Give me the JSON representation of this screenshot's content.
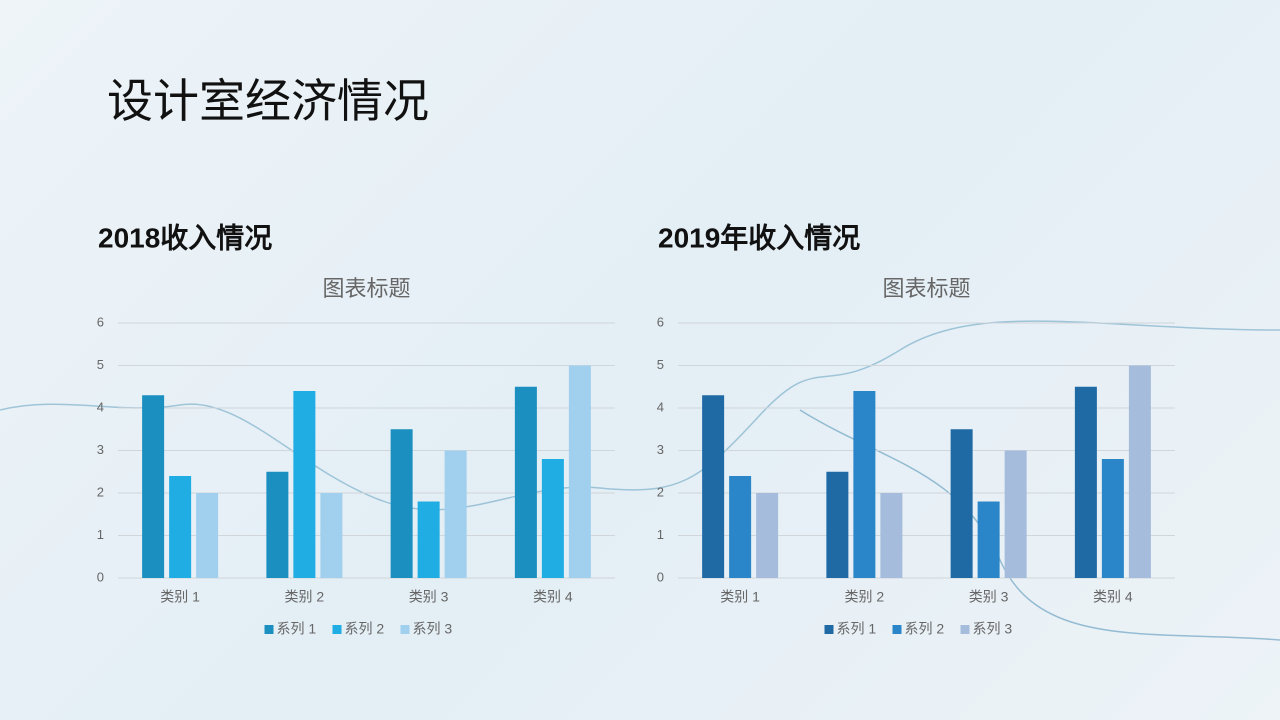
{
  "slide_title": "设计室经济情况",
  "chart_data": [
    {
      "type": "bar",
      "heading": "2018收入情况",
      "title": "图表标题",
      "categories": [
        "类别 1",
        "类别 2",
        "类别 3",
        "类别 4"
      ],
      "series": [
        {
          "name": "系列 1",
          "color": "#1a8fc0",
          "values": [
            4.3,
            2.5,
            3.5,
            4.5
          ]
        },
        {
          "name": "系列 2",
          "color": "#1fade3",
          "values": [
            2.4,
            4.4,
            1.8,
            2.8
          ]
        },
        {
          "name": "系列 3",
          "color": "#a0d0ee",
          "values": [
            2,
            2,
            3,
            5
          ]
        }
      ],
      "ylim": [
        0,
        6
      ],
      "yticks": [
        0,
        1,
        2,
        3,
        4,
        5,
        6
      ],
      "grid": true,
      "legend": "bottom"
    },
    {
      "type": "bar",
      "heading": "2019年收入情况",
      "title": "图表标题",
      "categories": [
        "类别 1",
        "类别 2",
        "类别 3",
        "类别 4"
      ],
      "series": [
        {
          "name": "系列 1",
          "color": "#1f6aa5",
          "values": [
            4.3,
            2.5,
            3.5,
            4.5
          ]
        },
        {
          "name": "系列 2",
          "color": "#2a86c8",
          "values": [
            2.4,
            4.4,
            1.8,
            2.8
          ]
        },
        {
          "name": "系列 3",
          "color": "#a5bcdc",
          "values": [
            2,
            2,
            3,
            5
          ]
        }
      ],
      "ylim": [
        0,
        6
      ],
      "yticks": [
        0,
        1,
        2,
        3,
        4,
        5,
        6
      ],
      "grid": true,
      "legend": "bottom"
    }
  ]
}
